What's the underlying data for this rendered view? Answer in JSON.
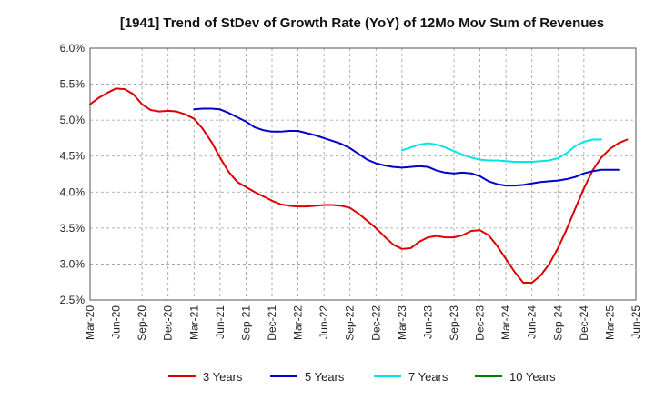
{
  "chart_data": {
    "type": "line",
    "title": "[1941]  Trend of StDev of Growth Rate (YoY) of 12Mo Mov Sum of Revenues",
    "xlabel": "",
    "ylabel": "",
    "x_ticks": [
      "Mar-20",
      "Jun-20",
      "Sep-20",
      "Dec-20",
      "Mar-21",
      "Jun-21",
      "Sep-21",
      "Dec-21",
      "Mar-22",
      "Jun-22",
      "Sep-22",
      "Dec-22",
      "Mar-23",
      "Jun-23",
      "Sep-23",
      "Dec-23",
      "Mar-24",
      "Jun-24",
      "Sep-24",
      "Dec-24",
      "Mar-25",
      "Jun-25"
    ],
    "y_ticks": [
      "2.5%",
      "3.0%",
      "3.5%",
      "4.0%",
      "4.5%",
      "5.0%",
      "5.5%",
      "6.0%"
    ],
    "ylim": [
      2.5,
      6.0
    ],
    "grid": true,
    "legend_position": "bottom",
    "series": [
      {
        "name": "3 Years",
        "color": "#dd0000",
        "start_index": 0,
        "values": [
          5.22,
          5.31,
          5.38,
          5.44,
          5.43,
          5.36,
          5.22,
          5.14,
          5.12,
          5.13,
          5.12,
          5.08,
          5.02,
          4.88,
          4.7,
          4.48,
          4.28,
          4.14,
          4.07,
          4.0,
          3.94,
          3.88,
          3.83,
          3.81,
          3.8,
          3.8,
          3.81,
          3.82,
          3.82,
          3.81,
          3.78,
          3.7,
          3.6,
          3.5,
          3.38,
          3.27,
          3.21,
          3.22,
          3.31,
          3.37,
          3.39,
          3.37,
          3.37,
          3.4,
          3.46,
          3.47,
          3.4,
          3.25,
          3.07,
          2.89,
          2.74,
          2.74,
          2.84,
          3.0,
          3.22,
          3.48,
          3.77,
          4.05,
          4.3,
          4.48,
          4.6,
          4.68,
          4.73
        ]
      },
      {
        "name": "5 Years",
        "color": "#0000cc",
        "start_index": 12,
        "values": [
          5.15,
          5.16,
          5.16,
          5.15,
          5.1,
          5.04,
          4.98,
          4.9,
          4.86,
          4.84,
          4.84,
          4.85,
          4.85,
          4.82,
          4.79,
          4.75,
          4.71,
          4.67,
          4.61,
          4.53,
          4.45,
          4.4,
          4.37,
          4.35,
          4.34,
          4.35,
          4.36,
          4.35,
          4.3,
          4.27,
          4.26,
          4.27,
          4.26,
          4.22,
          4.15,
          4.11,
          4.09,
          4.09,
          4.1,
          4.12,
          4.14,
          4.15,
          4.16,
          4.18,
          4.21,
          4.26,
          4.29,
          4.31,
          4.31,
          4.31
        ]
      },
      {
        "name": "7 Years",
        "color": "#00e5e5",
        "start_index": 36,
        "values": [
          4.58,
          4.62,
          4.66,
          4.68,
          4.66,
          4.62,
          4.57,
          4.52,
          4.48,
          4.45,
          4.44,
          4.44,
          4.43,
          4.42,
          4.42,
          4.42,
          4.43,
          4.44,
          4.47,
          4.54,
          4.64,
          4.7,
          4.73,
          4.73
        ]
      },
      {
        "name": "10 Years",
        "color": "#008000",
        "start_index": 0,
        "values": []
      }
    ]
  }
}
